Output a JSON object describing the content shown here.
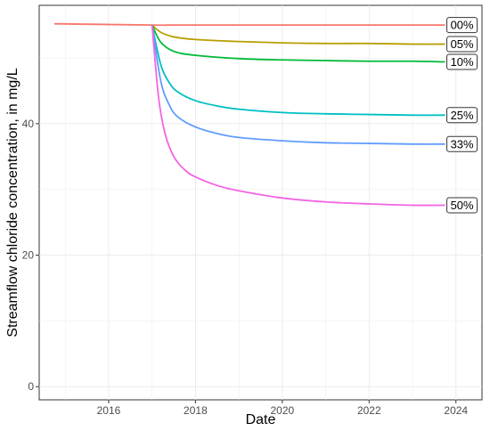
{
  "chart_data": {
    "type": "line",
    "xlabel": "Date",
    "ylabel": "Streamflow chloride concentration, in mg/L",
    "xlim": [
      2014.4,
      2024.6
    ],
    "ylim": [
      -2,
      58
    ],
    "x_ticks": [
      2016,
      2018,
      2020,
      2022,
      2024
    ],
    "y_ticks": [
      0,
      20,
      40
    ],
    "grid": true,
    "legend": "line-end labels",
    "series": [
      {
        "name": "00%",
        "color": "#F8766D",
        "x": [
          2014.75,
          2017.0,
          2017.5,
          2018.0,
          2019.0,
          2020.0,
          2021.0,
          2022.0,
          2023.0,
          2023.75
        ],
        "y": [
          55.2,
          55.0,
          55.0,
          55.0,
          55.0,
          55.0,
          55.0,
          55.0,
          55.0,
          55.0
        ]
      },
      {
        "name": "05%",
        "color": "#B79F00",
        "x": [
          2017.0,
          2017.2,
          2017.5,
          2018.0,
          2019.0,
          2020.0,
          2021.0,
          2022.0,
          2023.0,
          2023.75
        ],
        "y": [
          55.0,
          53.9,
          53.2,
          52.8,
          52.5,
          52.3,
          52.2,
          52.2,
          52.1,
          52.1
        ]
      },
      {
        "name": "10%",
        "color": "#00BA38",
        "x": [
          2017.0,
          2017.2,
          2017.5,
          2018.0,
          2019.0,
          2020.0,
          2021.0,
          2022.0,
          2023.0,
          2023.75
        ],
        "y": [
          55.0,
          52.4,
          51.0,
          50.4,
          49.9,
          49.7,
          49.6,
          49.5,
          49.5,
          49.4
        ]
      },
      {
        "name": "25%",
        "color": "#00BFC4",
        "x": [
          2017.0,
          2017.2,
          2017.4,
          2017.6,
          2018.0,
          2018.5,
          2019.0,
          2020.0,
          2021.0,
          2022.0,
          2023.0,
          2023.75
        ],
        "y": [
          55.0,
          49.0,
          46.2,
          44.8,
          43.5,
          42.7,
          42.2,
          41.7,
          41.5,
          41.4,
          41.3,
          41.3
        ]
      },
      {
        "name": "33%",
        "color": "#619CFF",
        "x": [
          2017.0,
          2017.2,
          2017.4,
          2017.6,
          2018.0,
          2018.5,
          2019.0,
          2020.0,
          2021.0,
          2022.0,
          2023.0,
          2023.75
        ],
        "y": [
          55.0,
          46.5,
          42.8,
          41.0,
          39.5,
          38.5,
          37.9,
          37.4,
          37.1,
          37.0,
          36.9,
          36.9
        ]
      },
      {
        "name": "50%",
        "color": "#F564E3",
        "x": [
          2017.0,
          2017.15,
          2017.3,
          2017.5,
          2017.75,
          2018.0,
          2018.5,
          2019.0,
          2020.0,
          2021.0,
          2022.0,
          2023.0,
          2023.75
        ],
        "y": [
          55.0,
          44.0,
          38.5,
          35.0,
          33.0,
          31.9,
          30.6,
          29.8,
          28.7,
          28.1,
          27.8,
          27.6,
          27.6
        ]
      }
    ]
  }
}
